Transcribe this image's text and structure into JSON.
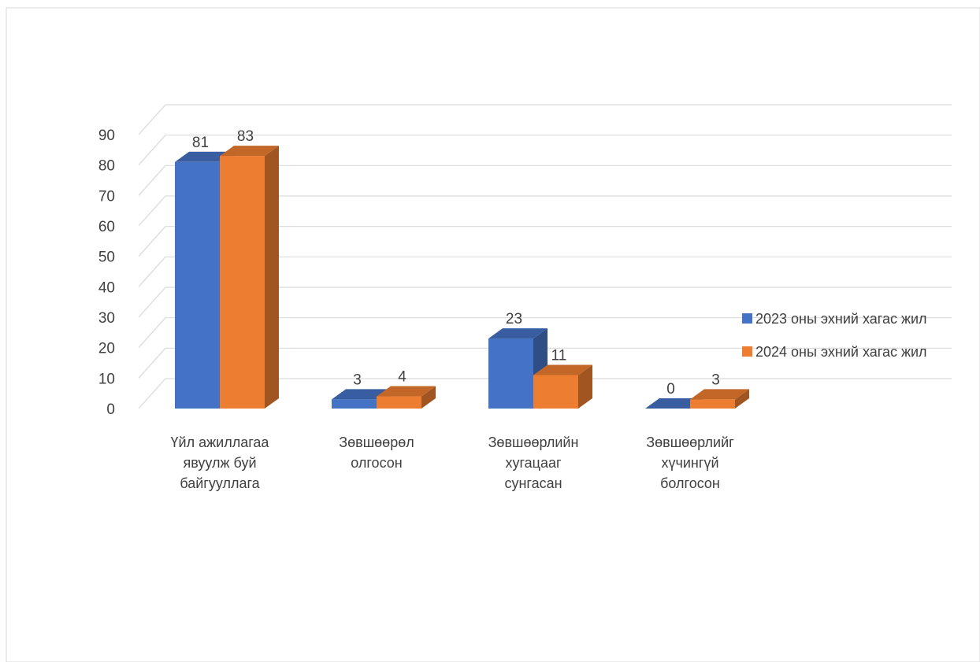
{
  "chart_data": {
    "type": "bar",
    "subtype": "3d-clustered-column",
    "categories": [
      [
        "Үйл ажиллагаа",
        "явуулж буй",
        "байгууллага"
      ],
      [
        "Зөвшөөрөл",
        "олгосон"
      ],
      [
        "Зөвшөөрлийн",
        "хугацааг",
        "сунгасан"
      ],
      [
        "Зөвшөөрлийг",
        "хүчингүй",
        "болгосон"
      ]
    ],
    "series": [
      {
        "name": "2023 оны эхний хагас жил",
        "values": [
          81,
          3,
          23,
          0
        ],
        "color": "#4472C4"
      },
      {
        "name": "2024 оны эхний хагас жил",
        "values": [
          83,
          4,
          11,
          3
        ],
        "color": "#ED7D31"
      }
    ],
    "ylim": [
      0,
      90
    ],
    "yticks": [
      0,
      10,
      20,
      30,
      40,
      50,
      60,
      70,
      80,
      90
    ],
    "data_labels": true,
    "grid": true,
    "legend_position": "right"
  }
}
